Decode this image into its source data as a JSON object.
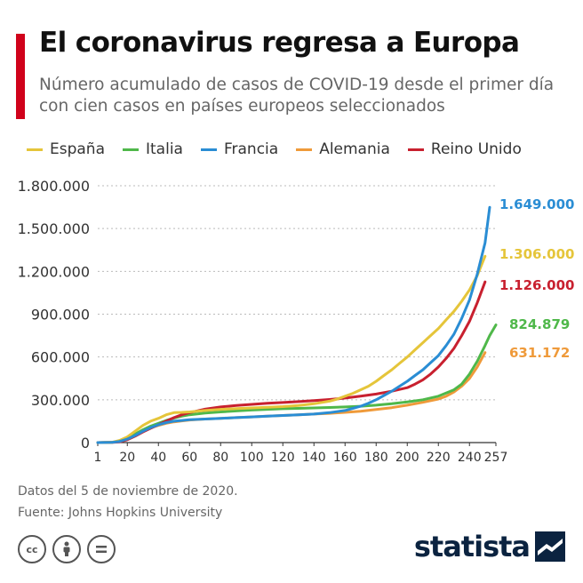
{
  "header": {
    "accent_color": "#d0021b",
    "title": "El coronavirus regresa a Europa",
    "subtitle": "Número acumulado de casos de COVID-19 desde el primer día con cien casos en países europeos seleccionados"
  },
  "chart_data": {
    "type": "line",
    "xlabel": "",
    "ylabel": "",
    "xlim": [
      1,
      257
    ],
    "ylim": [
      0,
      1800000
    ],
    "x_ticks": [
      1,
      20,
      40,
      60,
      80,
      100,
      120,
      140,
      160,
      180,
      200,
      220,
      240,
      257
    ],
    "y_ticks": [
      0,
      300000,
      600000,
      900000,
      1200000,
      1500000,
      1800000
    ],
    "y_tick_labels": [
      "0",
      "300.000",
      "600.000",
      "900.000",
      "1.200.000",
      "1.500.000",
      "1.800.000"
    ],
    "grid": "horizontal dotted",
    "legend": "top",
    "series": [
      {
        "name": "España",
        "color": "#e5c53a",
        "end_label": "1.306.000",
        "x": [
          1,
          10,
          15,
          20,
          25,
          30,
          35,
          40,
          45,
          50,
          55,
          60,
          70,
          80,
          90,
          100,
          110,
          120,
          130,
          140,
          150,
          155,
          160,
          165,
          170,
          175,
          180,
          185,
          190,
          195,
          200,
          205,
          210,
          215,
          220,
          225,
          230,
          235,
          240,
          245,
          250
        ],
        "y": [
          100,
          2000,
          15000,
          40000,
          80000,
          120000,
          150000,
          170000,
          195000,
          210000,
          212000,
          215000,
          225000,
          233000,
          238000,
          243000,
          248000,
          252000,
          260000,
          272000,
          290000,
          305000,
          325000,
          345000,
          370000,
          395000,
          430000,
          470000,
          510000,
          555000,
          600000,
          650000,
          700000,
          750000,
          800000,
          860000,
          920000,
          990000,
          1070000,
          1170000,
          1306000
        ]
      },
      {
        "name": "Italia",
        "color": "#4fb84a",
        "end_label": "824.879",
        "x": [
          1,
          10,
          15,
          20,
          25,
          30,
          35,
          40,
          45,
          50,
          55,
          60,
          70,
          80,
          90,
          100,
          110,
          120,
          130,
          140,
          150,
          160,
          170,
          180,
          190,
          200,
          210,
          220,
          230,
          235,
          240,
          245,
          250,
          253,
          257
        ],
        "y": [
          100,
          1500,
          10000,
          30000,
          60000,
          90000,
          115000,
          135000,
          155000,
          172000,
          185000,
          195000,
          207000,
          215000,
          222000,
          228000,
          233000,
          237000,
          240000,
          243000,
          246000,
          250000,
          255000,
          262000,
          272000,
          285000,
          300000,
          325000,
          370000,
          410000,
          480000,
          570000,
          680000,
          750000,
          824879
        ]
      },
      {
        "name": "Francia",
        "color": "#2a8dd4",
        "end_label": "1.649.000",
        "x": [
          1,
          10,
          15,
          20,
          25,
          30,
          35,
          40,
          45,
          50,
          55,
          60,
          70,
          80,
          90,
          100,
          110,
          120,
          130,
          140,
          150,
          160,
          165,
          170,
          175,
          180,
          185,
          190,
          195,
          200,
          205,
          210,
          215,
          220,
          225,
          230,
          235,
          240,
          245,
          250,
          253
        ],
        "y": [
          100,
          1200,
          8000,
          25000,
          50000,
          80000,
          105000,
          125000,
          140000,
          150000,
          155000,
          160000,
          165000,
          170000,
          175000,
          180000,
          185000,
          190000,
          195000,
          200000,
          210000,
          225000,
          240000,
          255000,
          275000,
          300000,
          330000,
          360000,
          395000,
          430000,
          470000,
          510000,
          560000,
          610000,
          680000,
          760000,
          870000,
          1000000,
          1180000,
          1400000,
          1649000
        ]
      },
      {
        "name": "Alemania",
        "color": "#ef9a3a",
        "end_label": "631.172",
        "x": [
          1,
          10,
          15,
          20,
          25,
          30,
          35,
          40,
          45,
          50,
          55,
          60,
          70,
          80,
          90,
          100,
          110,
          120,
          130,
          140,
          150,
          160,
          170,
          180,
          190,
          200,
          210,
          220,
          225,
          230,
          235,
          240,
          245,
          250
        ],
        "y": [
          100,
          1500,
          10000,
          32000,
          58000,
          85000,
          105000,
          120000,
          135000,
          145000,
          152000,
          158000,
          165000,
          170000,
          175000,
          180000,
          185000,
          190000,
          195000,
          200000,
          205000,
          212000,
          220000,
          232000,
          245000,
          262000,
          282000,
          305000,
          325000,
          355000,
          395000,
          450000,
          530000,
          631172
        ]
      },
      {
        "name": "Reino Unido",
        "color": "#c8202f",
        "end_label": "1.126.000",
        "x": [
          1,
          10,
          15,
          20,
          25,
          30,
          35,
          40,
          45,
          50,
          55,
          60,
          70,
          80,
          90,
          100,
          110,
          120,
          130,
          140,
          150,
          160,
          170,
          180,
          190,
          200,
          205,
          210,
          215,
          220,
          225,
          230,
          235,
          240,
          245,
          250
        ],
        "y": [
          100,
          1000,
          5000,
          20000,
          45000,
          75000,
          100000,
          125000,
          150000,
          175000,
          195000,
          210000,
          235000,
          250000,
          260000,
          268000,
          275000,
          281000,
          287000,
          294000,
          302000,
          312000,
          325000,
          340000,
          360000,
          385000,
          410000,
          440000,
          480000,
          530000,
          590000,
          660000,
          750000,
          850000,
          980000,
          1126000
        ]
      }
    ]
  },
  "footer": {
    "note_line1": "Datos del 5 de noviembre de 2020.",
    "note_line2": "Fuente: Johns Hopkins University",
    "brand": "statista"
  }
}
